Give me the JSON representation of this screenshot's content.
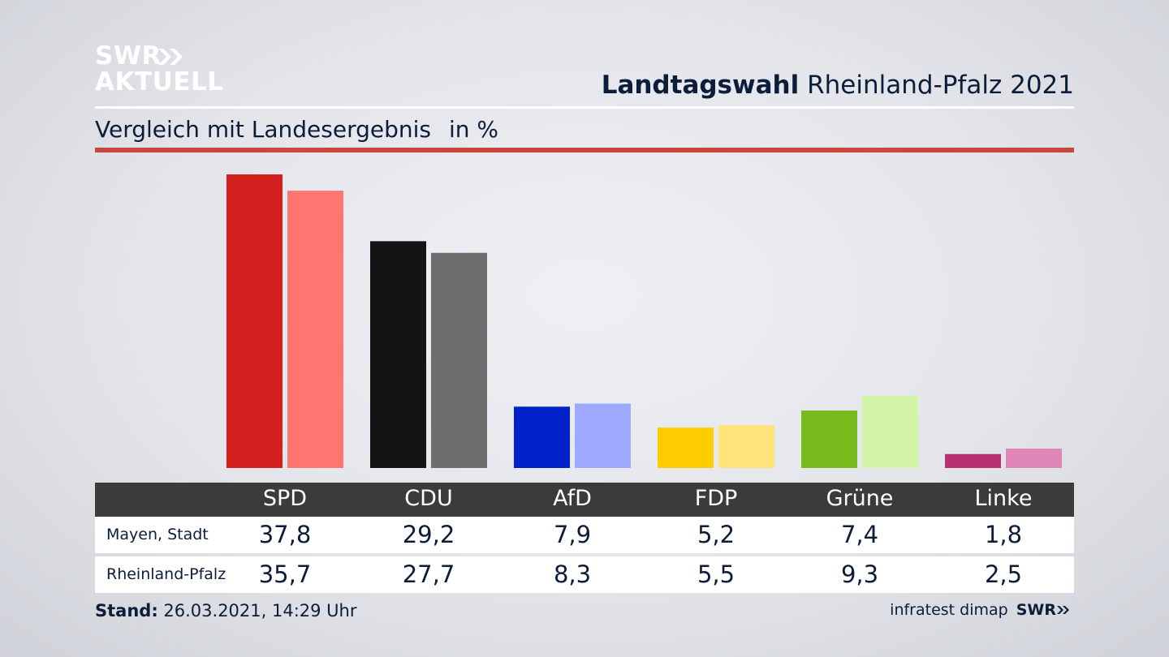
{
  "logo": {
    "line1": "SWR",
    "line2": "AKTUELL"
  },
  "headline": {
    "bold": "Landtagswahl",
    "rest": " Rheinland-Pfalz 2021"
  },
  "subtitle": {
    "text": "Vergleich mit Landesergebnis",
    "unit": "in %"
  },
  "chart_data": {
    "type": "bar",
    "categories": [
      "SPD",
      "CDU",
      "AfD",
      "FDP",
      "Grüne",
      "Linke"
    ],
    "series": [
      {
        "name": "Mayen, Stadt",
        "values": [
          37.8,
          29.2,
          7.9,
          5.2,
          7.4,
          1.8
        ],
        "labels": [
          "37,8",
          "29,2",
          "7,9",
          "5,2",
          "7,4",
          "1,8"
        ]
      },
      {
        "name": "Rheinland-Pfalz",
        "values": [
          35.7,
          27.7,
          8.3,
          5.5,
          9.3,
          2.5
        ],
        "labels": [
          "35,7",
          "27,7",
          "8,3",
          "5,5",
          "9,3",
          "2,5"
        ]
      }
    ],
    "colors": {
      "primary": [
        "#d52020",
        "#141414",
        "#0022c8",
        "#ffcc00",
        "#78bb1c",
        "#b83071"
      ],
      "secondary": [
        "#ff7570",
        "#6e6e6e",
        "#9daaff",
        "#ffe47a",
        "#d4f5a8",
        "#e187b7"
      ]
    },
    "ylim": [
      0,
      37.8
    ],
    "grid": false
  },
  "table": {
    "header_bg": "#3b3b3b"
  },
  "footer": {
    "stand_label": "Stand:",
    "stand_value": " 26.03.2021, 14:29 Uhr",
    "source": "infratest dimap",
    "brand": "SWR"
  }
}
